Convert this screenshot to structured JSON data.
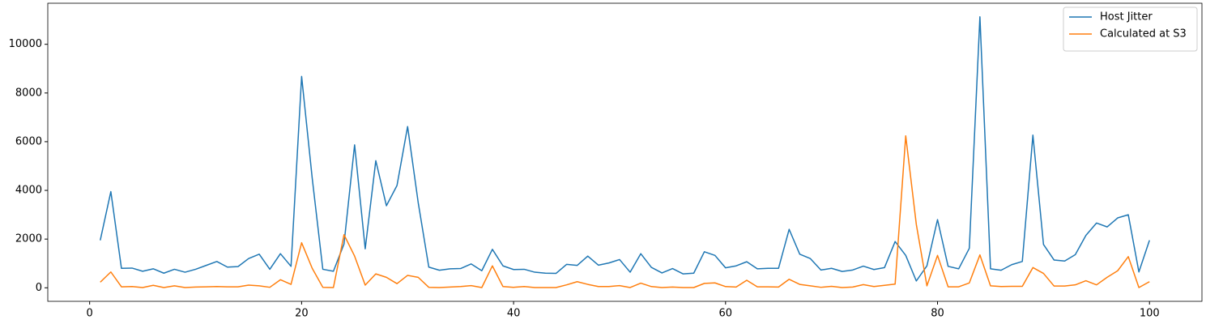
{
  "chart_data": {
    "type": "line",
    "x": [
      1,
      2,
      3,
      4,
      5,
      6,
      7,
      8,
      9,
      10,
      11,
      12,
      13,
      14,
      15,
      16,
      17,
      18,
      19,
      20,
      21,
      22,
      23,
      24,
      25,
      26,
      27,
      28,
      29,
      30,
      31,
      32,
      33,
      34,
      35,
      36,
      37,
      38,
      39,
      40,
      41,
      42,
      43,
      44,
      45,
      46,
      47,
      48,
      49,
      50,
      51,
      52,
      53,
      54,
      55,
      56,
      57,
      58,
      59,
      60,
      61,
      62,
      63,
      64,
      65,
      66,
      67,
      68,
      69,
      70,
      71,
      72,
      73,
      74,
      75,
      76,
      77,
      78,
      79,
      80,
      81,
      82,
      83,
      84,
      85,
      86,
      87,
      88,
      89,
      90,
      91,
      92,
      93,
      94,
      95,
      96,
      97,
      98,
      99,
      100
    ],
    "series": [
      {
        "name": "Host Jitter",
        "color": "#1f77b4",
        "values": [
          1950,
          3950,
          800,
          810,
          680,
          780,
          600,
          760,
          640,
          760,
          920,
          1080,
          850,
          870,
          1200,
          1380,
          760,
          1400,
          880,
          8680,
          4500,
          760,
          680,
          1800,
          5870,
          1600,
          5220,
          3370,
          4200,
          6620,
          3500,
          850,
          720,
          780,
          790,
          980,
          700,
          1580,
          900,
          750,
          760,
          640,
          600,
          590,
          960,
          920,
          1300,
          930,
          1020,
          1160,
          640,
          1400,
          840,
          610,
          790,
          570,
          600,
          1480,
          1330,
          820,
          900,
          1070,
          780,
          800,
          800,
          2400,
          1380,
          1200,
          730,
          800,
          670,
          730,
          890,
          750,
          830,
          1900,
          1330,
          280,
          900,
          2800,
          880,
          780,
          1620,
          11130,
          780,
          720,
          950,
          1080,
          6270,
          1780,
          1140,
          1100,
          1360,
          2150,
          2660,
          2500,
          2870,
          3000,
          650,
          1950
        ]
      },
      {
        "name": "Calculated at S3",
        "color": "#ff7f0e",
        "values": [
          230,
          650,
          40,
          50,
          10,
          100,
          10,
          80,
          10,
          30,
          40,
          50,
          40,
          40,
          110,
          80,
          20,
          330,
          140,
          1850,
          800,
          20,
          10,
          2180,
          1300,
          110,
          570,
          430,
          170,
          510,
          430,
          20,
          10,
          30,
          50,
          90,
          10,
          900,
          50,
          20,
          50,
          10,
          10,
          10,
          120,
          250,
          140,
          50,
          50,
          90,
          10,
          190,
          50,
          10,
          30,
          10,
          10,
          180,
          200,
          50,
          30,
          310,
          40,
          40,
          30,
          350,
          140,
          80,
          20,
          60,
          10,
          30,
          130,
          50,
          100,
          150,
          6240,
          2600,
          80,
          1330,
          40,
          40,
          200,
          1350,
          80,
          50,
          60,
          60,
          830,
          590,
          70,
          70,
          120,
          290,
          120,
          430,
          700,
          1280,
          10,
          250
        ]
      }
    ],
    "xlim": [
      -3.95,
      104.95
    ],
    "xticks": [
      0,
      20,
      40,
      60,
      80,
      100
    ],
    "ylim": [
      -556,
      11686
    ],
    "yticks": [
      0,
      2000,
      4000,
      6000,
      8000,
      10000
    ],
    "legend": "upper right"
  }
}
